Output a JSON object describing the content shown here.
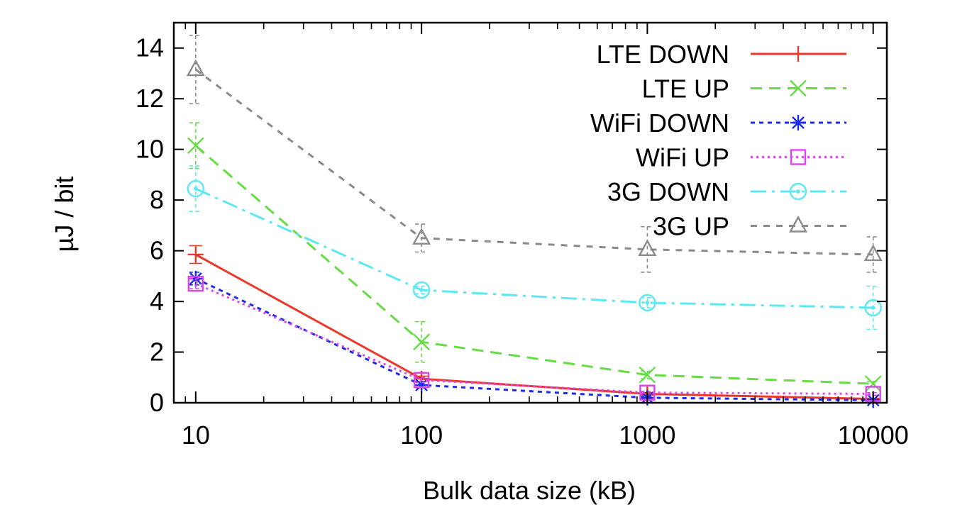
{
  "chart_data": {
    "type": "line",
    "title": "",
    "xlabel": "Bulk data size (kB)",
    "ylabel": "µJ / bit",
    "x_scale": "log",
    "xlim": [
      8,
      11500
    ],
    "ylim": [
      0,
      15
    ],
    "x_ticks": [
      10,
      100,
      1000,
      10000
    ],
    "x_tick_labels": [
      "10",
      "100",
      "1000",
      "10000"
    ],
    "y_ticks": [
      0,
      2,
      4,
      6,
      8,
      10,
      12,
      14
    ],
    "y_tick_labels": [
      "0",
      "2",
      "4",
      "6",
      "8",
      "10",
      "12",
      "14"
    ],
    "grid": false,
    "legend_position": "top-right",
    "x": [
      10,
      100,
      1000,
      10000
    ],
    "series": [
      {
        "name": "LTE DOWN",
        "color": "#e8392a",
        "dash": "solid",
        "marker": "plus",
        "values": [
          5.85,
          0.95,
          0.35,
          0.15
        ],
        "err": [
          0.35,
          0.1,
          0.05,
          0.03
        ]
      },
      {
        "name": "LTE UP",
        "color": "#66dd44",
        "dash": "dashed",
        "marker": "x",
        "values": [
          10.15,
          2.4,
          1.1,
          0.75
        ],
        "err": [
          0.9,
          0.8,
          0.15,
          0.1
        ]
      },
      {
        "name": "WiFi DOWN",
        "color": "#1d2be8",
        "dash": "dotted",
        "marker": "asterisk",
        "values": [
          4.9,
          0.7,
          0.2,
          0.1
        ],
        "err": [
          0.25,
          0.1,
          0.05,
          0.03
        ]
      },
      {
        "name": "WiFi UP",
        "color": "#dd44ee",
        "dash": "finedot",
        "marker": "square",
        "values": [
          4.7,
          0.9,
          0.4,
          0.35
        ],
        "err": [
          0.2,
          0.1,
          0.05,
          0.05
        ]
      },
      {
        "name": "3G DOWN",
        "color": "#5ce8f2",
        "dash": "dashdot",
        "marker": "circle",
        "values": [
          8.45,
          4.45,
          3.95,
          3.75
        ],
        "err": [
          0.9,
          0.15,
          0.2,
          0.85
        ]
      },
      {
        "name": "3G UP",
        "color": "#8a8a8a",
        "dash": "shortdash",
        "marker": "triangle",
        "values": [
          13.15,
          6.5,
          6.05,
          5.85
        ],
        "err": [
          1.35,
          0.55,
          0.9,
          0.7
        ]
      }
    ]
  }
}
